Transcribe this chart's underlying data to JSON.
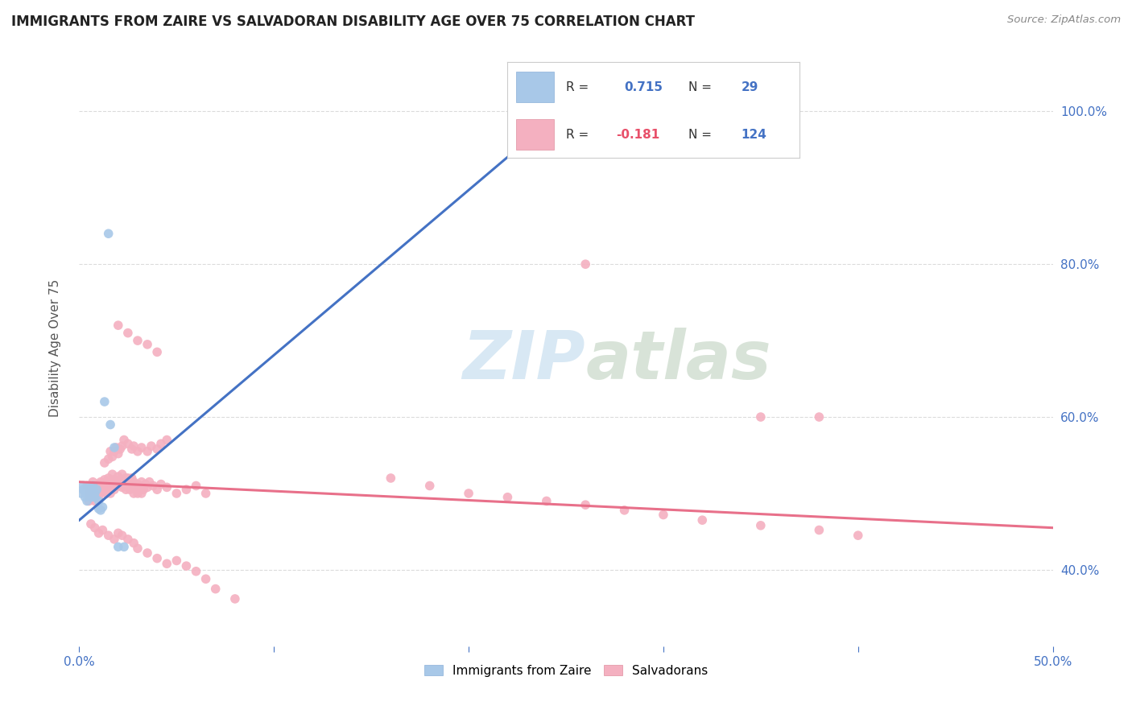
{
  "title": "IMMIGRANTS FROM ZAIRE VS SALVADORAN DISABILITY AGE OVER 75 CORRELATION CHART",
  "source": "Source: ZipAtlas.com",
  "ylabel": "Disability Age Over 75",
  "xlim": [
    0.0,
    0.5
  ],
  "ylim": [
    0.3,
    1.08
  ],
  "x_tick_vals": [
    0.0,
    0.1,
    0.2,
    0.3,
    0.4,
    0.5
  ],
  "x_tick_labels": [
    "0.0%",
    "",
    "",
    "",
    "",
    "50.0%"
  ],
  "y_tick_vals": [
    0.4,
    0.6,
    0.8,
    1.0
  ],
  "y_tick_labels": [
    "40.0%",
    "60.0%",
    "80.0%",
    "100.0%"
  ],
  "zaire_line_color": "#4472c4",
  "salvadoran_line_color": "#e8708a",
  "zaire_scatter_color": "#a8c8e8",
  "salvadoran_scatter_color": "#f4b0c0",
  "watermark_color": "#d8e8f4",
  "background_color": "#ffffff",
  "grid_color": "#d8d8d8",
  "zaire_R": 0.715,
  "zaire_N": 29,
  "salvadoran_R": -0.181,
  "salvadoran_N": 124,
  "zaire_scatter": [
    [
      0.001,
      0.5
    ],
    [
      0.002,
      0.505
    ],
    [
      0.002,
      0.51
    ],
    [
      0.003,
      0.495
    ],
    [
      0.003,
      0.502
    ],
    [
      0.004,
      0.498
    ],
    [
      0.004,
      0.505
    ],
    [
      0.004,
      0.49
    ],
    [
      0.005,
      0.5
    ],
    [
      0.005,
      0.508
    ],
    [
      0.006,
      0.495
    ],
    [
      0.006,
      0.503
    ],
    [
      0.007,
      0.51
    ],
    [
      0.007,
      0.498
    ],
    [
      0.007,
      0.505
    ],
    [
      0.008,
      0.5
    ],
    [
      0.008,
      0.495
    ],
    [
      0.009,
      0.505
    ],
    [
      0.01,
      0.48
    ],
    [
      0.01,
      0.49
    ],
    [
      0.011,
      0.478
    ],
    [
      0.012,
      0.482
    ],
    [
      0.013,
      0.62
    ],
    [
      0.015,
      0.84
    ],
    [
      0.016,
      0.59
    ],
    [
      0.018,
      0.56
    ],
    [
      0.02,
      0.43
    ],
    [
      0.023,
      0.43
    ],
    [
      0.24,
      1.01
    ]
  ],
  "salvadoran_scatter": [
    [
      0.004,
      0.51
    ],
    [
      0.005,
      0.5
    ],
    [
      0.005,
      0.49
    ],
    [
      0.006,
      0.505
    ],
    [
      0.006,
      0.495
    ],
    [
      0.007,
      0.515
    ],
    [
      0.007,
      0.5
    ],
    [
      0.008,
      0.51
    ],
    [
      0.008,
      0.49
    ],
    [
      0.009,
      0.505
    ],
    [
      0.009,
      0.498
    ],
    [
      0.01,
      0.512
    ],
    [
      0.01,
      0.495
    ],
    [
      0.011,
      0.508
    ],
    [
      0.011,
      0.515
    ],
    [
      0.012,
      0.502
    ],
    [
      0.012,
      0.51
    ],
    [
      0.013,
      0.518
    ],
    [
      0.013,
      0.505
    ],
    [
      0.014,
      0.512
    ],
    [
      0.014,
      0.5
    ],
    [
      0.015,
      0.508
    ],
    [
      0.015,
      0.52
    ],
    [
      0.016,
      0.515
    ],
    [
      0.016,
      0.5
    ],
    [
      0.017,
      0.51
    ],
    [
      0.017,
      0.525
    ],
    [
      0.018,
      0.518
    ],
    [
      0.018,
      0.505
    ],
    [
      0.019,
      0.515
    ],
    [
      0.02,
      0.522
    ],
    [
      0.02,
      0.51
    ],
    [
      0.021,
      0.518
    ],
    [
      0.022,
      0.525
    ],
    [
      0.022,
      0.508
    ],
    [
      0.023,
      0.515
    ],
    [
      0.024,
      0.52
    ],
    [
      0.024,
      0.505
    ],
    [
      0.025,
      0.512
    ],
    [
      0.025,
      0.52
    ],
    [
      0.026,
      0.515
    ],
    [
      0.026,
      0.505
    ],
    [
      0.027,
      0.51
    ],
    [
      0.027,
      0.52
    ],
    [
      0.028,
      0.515
    ],
    [
      0.028,
      0.5
    ],
    [
      0.029,
      0.505
    ],
    [
      0.03,
      0.512
    ],
    [
      0.03,
      0.5
    ],
    [
      0.031,
      0.508
    ],
    [
      0.032,
      0.515
    ],
    [
      0.032,
      0.5
    ],
    [
      0.033,
      0.505
    ],
    [
      0.034,
      0.512
    ],
    [
      0.035,
      0.508
    ],
    [
      0.036,
      0.515
    ],
    [
      0.038,
      0.51
    ],
    [
      0.04,
      0.505
    ],
    [
      0.042,
      0.512
    ],
    [
      0.045,
      0.508
    ],
    [
      0.05,
      0.5
    ],
    [
      0.055,
      0.505
    ],
    [
      0.06,
      0.51
    ],
    [
      0.065,
      0.5
    ],
    [
      0.013,
      0.54
    ],
    [
      0.015,
      0.545
    ],
    [
      0.016,
      0.555
    ],
    [
      0.017,
      0.548
    ],
    [
      0.018,
      0.555
    ],
    [
      0.019,
      0.56
    ],
    [
      0.02,
      0.552
    ],
    [
      0.021,
      0.558
    ],
    [
      0.022,
      0.562
    ],
    [
      0.023,
      0.57
    ],
    [
      0.025,
      0.565
    ],
    [
      0.027,
      0.558
    ],
    [
      0.028,
      0.562
    ],
    [
      0.03,
      0.555
    ],
    [
      0.032,
      0.56
    ],
    [
      0.035,
      0.555
    ],
    [
      0.037,
      0.562
    ],
    [
      0.04,
      0.558
    ],
    [
      0.042,
      0.565
    ],
    [
      0.045,
      0.57
    ],
    [
      0.006,
      0.46
    ],
    [
      0.008,
      0.455
    ],
    [
      0.01,
      0.448
    ],
    [
      0.012,
      0.452
    ],
    [
      0.015,
      0.445
    ],
    [
      0.018,
      0.44
    ],
    [
      0.02,
      0.448
    ],
    [
      0.022,
      0.445
    ],
    [
      0.025,
      0.44
    ],
    [
      0.028,
      0.435
    ],
    [
      0.03,
      0.428
    ],
    [
      0.035,
      0.422
    ],
    [
      0.04,
      0.415
    ],
    [
      0.045,
      0.408
    ],
    [
      0.05,
      0.412
    ],
    [
      0.055,
      0.405
    ],
    [
      0.06,
      0.398
    ],
    [
      0.065,
      0.388
    ],
    [
      0.07,
      0.375
    ],
    [
      0.08,
      0.362
    ],
    [
      0.02,
      0.72
    ],
    [
      0.025,
      0.71
    ],
    [
      0.03,
      0.7
    ],
    [
      0.035,
      0.695
    ],
    [
      0.04,
      0.685
    ],
    [
      0.26,
      0.8
    ],
    [
      0.16,
      0.52
    ],
    [
      0.18,
      0.51
    ],
    [
      0.2,
      0.5
    ],
    [
      0.22,
      0.495
    ],
    [
      0.24,
      0.49
    ],
    [
      0.26,
      0.485
    ],
    [
      0.28,
      0.478
    ],
    [
      0.3,
      0.472
    ],
    [
      0.32,
      0.465
    ],
    [
      0.35,
      0.458
    ],
    [
      0.38,
      0.452
    ],
    [
      0.4,
      0.445
    ],
    [
      0.35,
      0.6
    ],
    [
      0.38,
      0.6
    ]
  ]
}
